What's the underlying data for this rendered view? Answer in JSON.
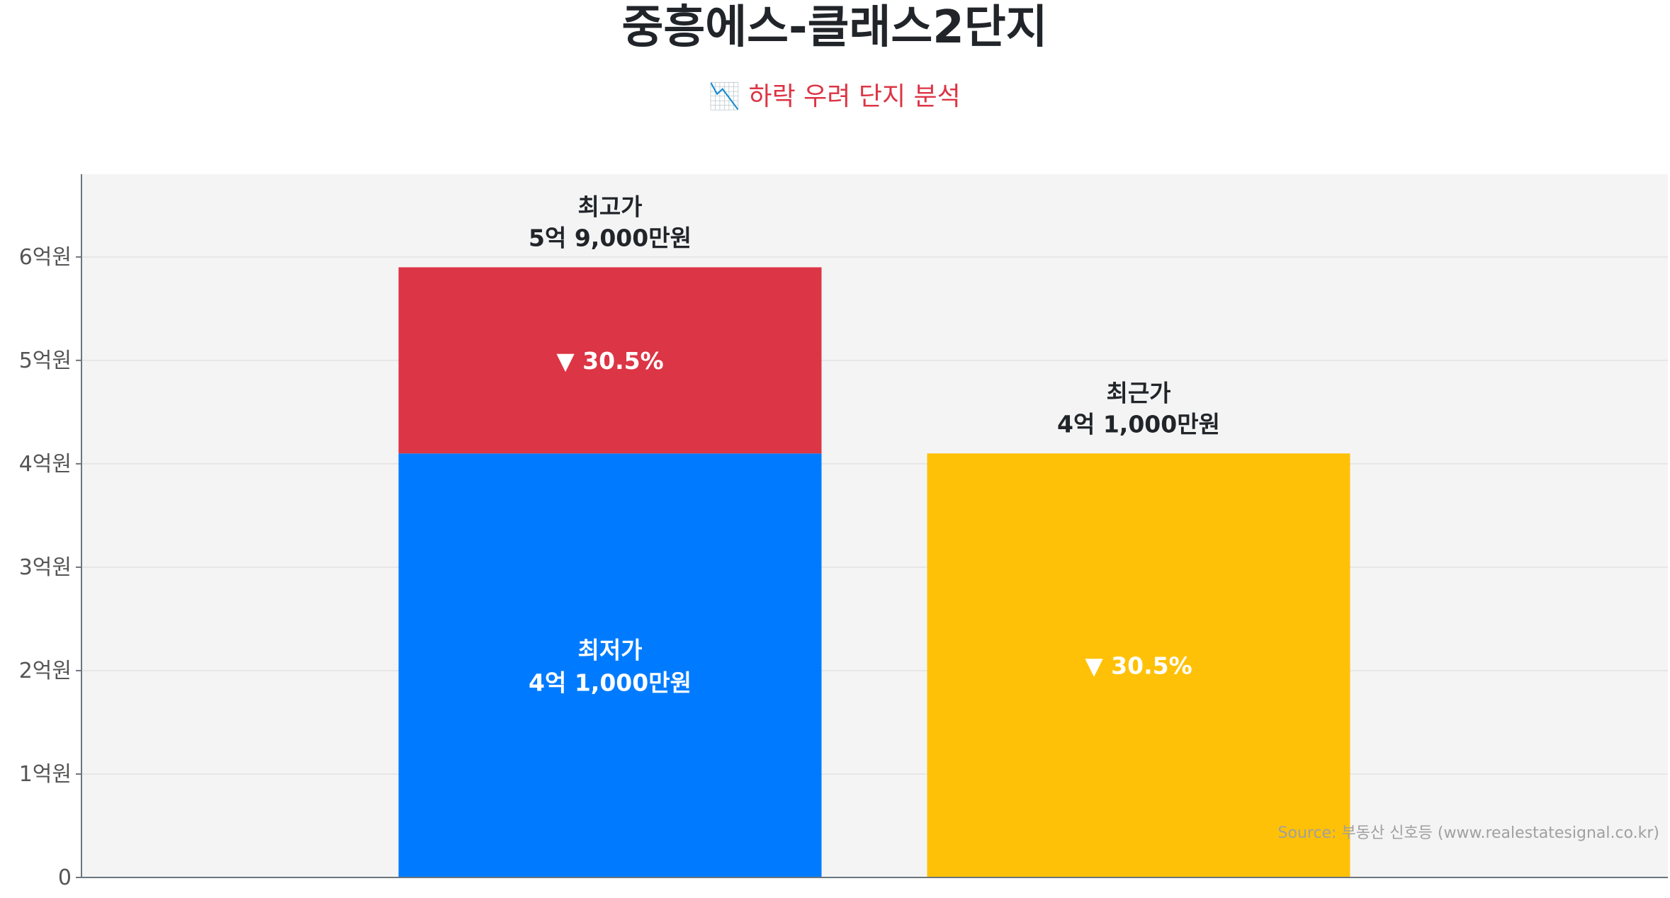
{
  "chart_data": {
    "type": "bar",
    "title": "중흥에스-클래스2단지",
    "subtitle": "📉 하락 우려 단지 분석",
    "ylim": [
      0,
      6.8
    ],
    "y_unit": "억원",
    "yticks": [
      {
        "value": 0,
        "label": "0"
      },
      {
        "value": 1,
        "label": "1억원"
      },
      {
        "value": 2,
        "label": "2억원"
      },
      {
        "value": 3,
        "label": "3억원"
      },
      {
        "value": 4,
        "label": "4억원"
      },
      {
        "value": 5,
        "label": "5억원"
      },
      {
        "value": 6,
        "label": "6억원"
      }
    ],
    "grid": true,
    "bars": [
      {
        "name": "최저가",
        "value": 4.1,
        "color": "#007bff",
        "label": "최저가",
        "value_label": "4억 1,000만원",
        "stack_top": {
          "name": "최고가",
          "value": 5.9,
          "color": "#dc3545",
          "label": "최고가",
          "value_label": "5억 9,000만원",
          "change_label": "▼ 30.5%"
        }
      },
      {
        "name": "최근가",
        "value": 4.1,
        "color": "#ffc107",
        "label": "최근가",
        "value_label": "4억 1,000만원",
        "change_label": "▼ 30.5%"
      }
    ],
    "source": "Source: 부동산 신호등 (www.realestatesignal.co.kr)",
    "plot_background": "#f4f4f4"
  }
}
